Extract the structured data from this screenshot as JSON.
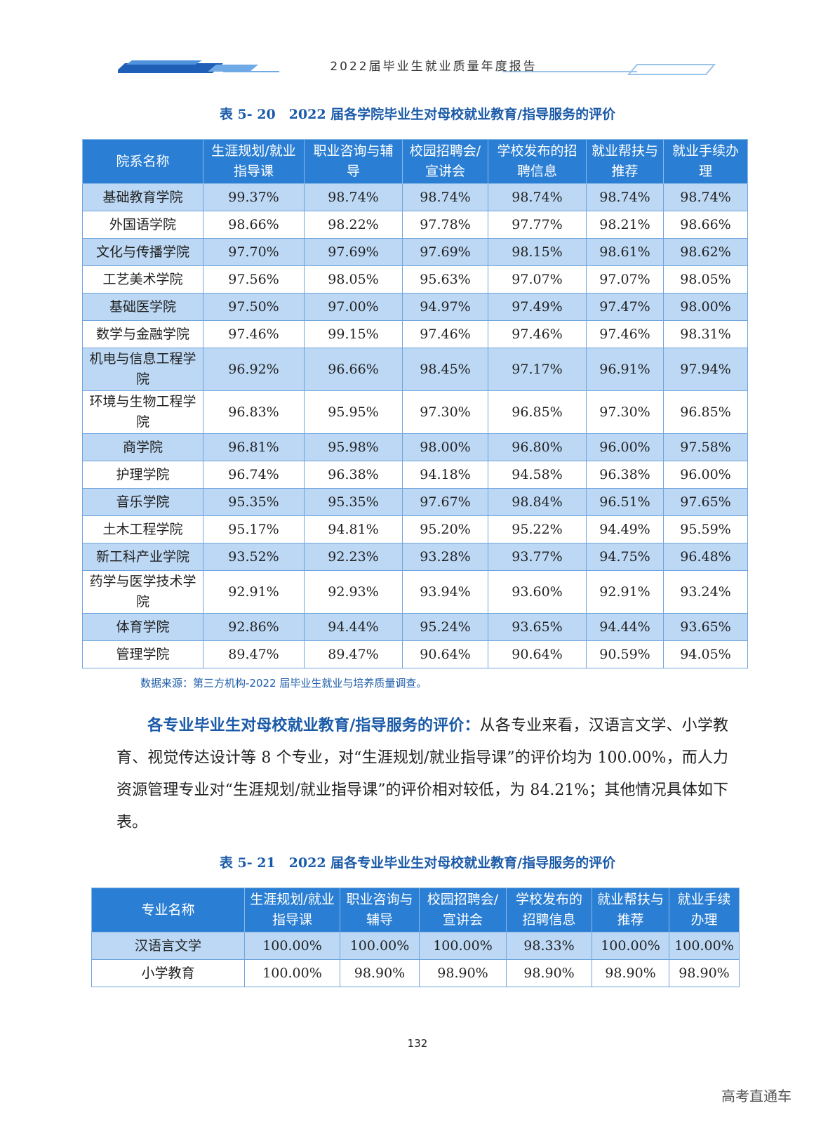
{
  "header": {
    "title": "2022届毕业生就业质量年度报告"
  },
  "table1": {
    "caption": "表 5- 20　2022 届各学院毕业生对母校就业教育/指导服务的评价",
    "headers": [
      "院系名称",
      "生涯规划/就业指导课",
      "职业咨询与辅导",
      "校园招聘会/宣讲会",
      "学校发布的招聘信息",
      "就业帮扶与推荐",
      "就业手续办理"
    ],
    "rows": [
      [
        "基础教育学院",
        "99.37%",
        "98.74%",
        "98.74%",
        "98.74%",
        "98.74%",
        "98.74%"
      ],
      [
        "外国语学院",
        "98.66%",
        "98.22%",
        "97.78%",
        "97.77%",
        "98.21%",
        "98.66%"
      ],
      [
        "文化与传播学院",
        "97.70%",
        "97.69%",
        "97.69%",
        "98.15%",
        "98.61%",
        "98.62%"
      ],
      [
        "工艺美术学院",
        "97.56%",
        "98.05%",
        "95.63%",
        "97.07%",
        "97.07%",
        "98.05%"
      ],
      [
        "基础医学院",
        "97.50%",
        "97.00%",
        "94.97%",
        "97.49%",
        "97.47%",
        "98.00%"
      ],
      [
        "数学与金融学院",
        "97.46%",
        "99.15%",
        "97.46%",
        "97.46%",
        "97.46%",
        "98.31%"
      ],
      [
        "机电与信息工程学院",
        "96.92%",
        "96.66%",
        "98.45%",
        "97.17%",
        "96.91%",
        "97.94%"
      ],
      [
        "环境与生物工程学院",
        "96.83%",
        "95.95%",
        "97.30%",
        "96.85%",
        "97.30%",
        "96.85%"
      ],
      [
        "商学院",
        "96.81%",
        "95.98%",
        "98.00%",
        "96.80%",
        "96.00%",
        "97.58%"
      ],
      [
        "护理学院",
        "96.74%",
        "96.38%",
        "94.18%",
        "94.58%",
        "96.38%",
        "96.00%"
      ],
      [
        "音乐学院",
        "95.35%",
        "95.35%",
        "97.67%",
        "98.84%",
        "96.51%",
        "97.65%"
      ],
      [
        "土木工程学院",
        "95.17%",
        "94.81%",
        "95.20%",
        "95.22%",
        "94.49%",
        "95.59%"
      ],
      [
        "新工科产业学院",
        "93.52%",
        "92.23%",
        "93.28%",
        "93.77%",
        "94.75%",
        "96.48%"
      ],
      [
        "药学与医学技术学院",
        "92.91%",
        "92.93%",
        "93.94%",
        "93.60%",
        "92.91%",
        "93.24%"
      ],
      [
        "体育学院",
        "92.86%",
        "94.44%",
        "95.24%",
        "93.65%",
        "94.44%",
        "93.65%"
      ],
      [
        "管理学院",
        "89.47%",
        "89.47%",
        "90.64%",
        "90.64%",
        "90.59%",
        "94.05%"
      ]
    ],
    "source": "数据来源：第三方机构-2022 届毕业生就业与培养质量调查。"
  },
  "paragraph": {
    "lead": "各专业毕业生对母校就业教育/指导服务的评价：",
    "body": "从各专业来看，汉语言文学、小学教育、视觉传达设计等 8 个专业，对“生涯规划/就业指导课”的评价均为 100.00%，而人力资源管理专业对“生涯规划/就业指导课”的评价相对较低，为 84.21%；其他情况具体如下表。"
  },
  "table2": {
    "caption": "表 5- 21　2022 届各专业毕业生对母校就业教育/指导服务的评价",
    "headers": [
      "专业名称",
      "生涯规划/就业指导课",
      "职业咨询与辅导",
      "校园招聘会/宣讲会",
      "学校发布的招聘信息",
      "就业帮扶与推荐",
      "就业手续办理"
    ],
    "rows": [
      [
        "汉语言文学",
        "100.00%",
        "100.00%",
        "100.00%",
        "98.33%",
        "100.00%",
        "100.00%"
      ],
      [
        "小学教育",
        "100.00%",
        "98.90%",
        "98.90%",
        "98.90%",
        "98.90%",
        "98.90%"
      ]
    ]
  },
  "page_number": "132",
  "watermark": "高考直通车",
  "colors": {
    "header_blue": "#2a7fd4",
    "stripe_blue": "#bcd8f4",
    "caption_blue": "#1a5aa8"
  }
}
